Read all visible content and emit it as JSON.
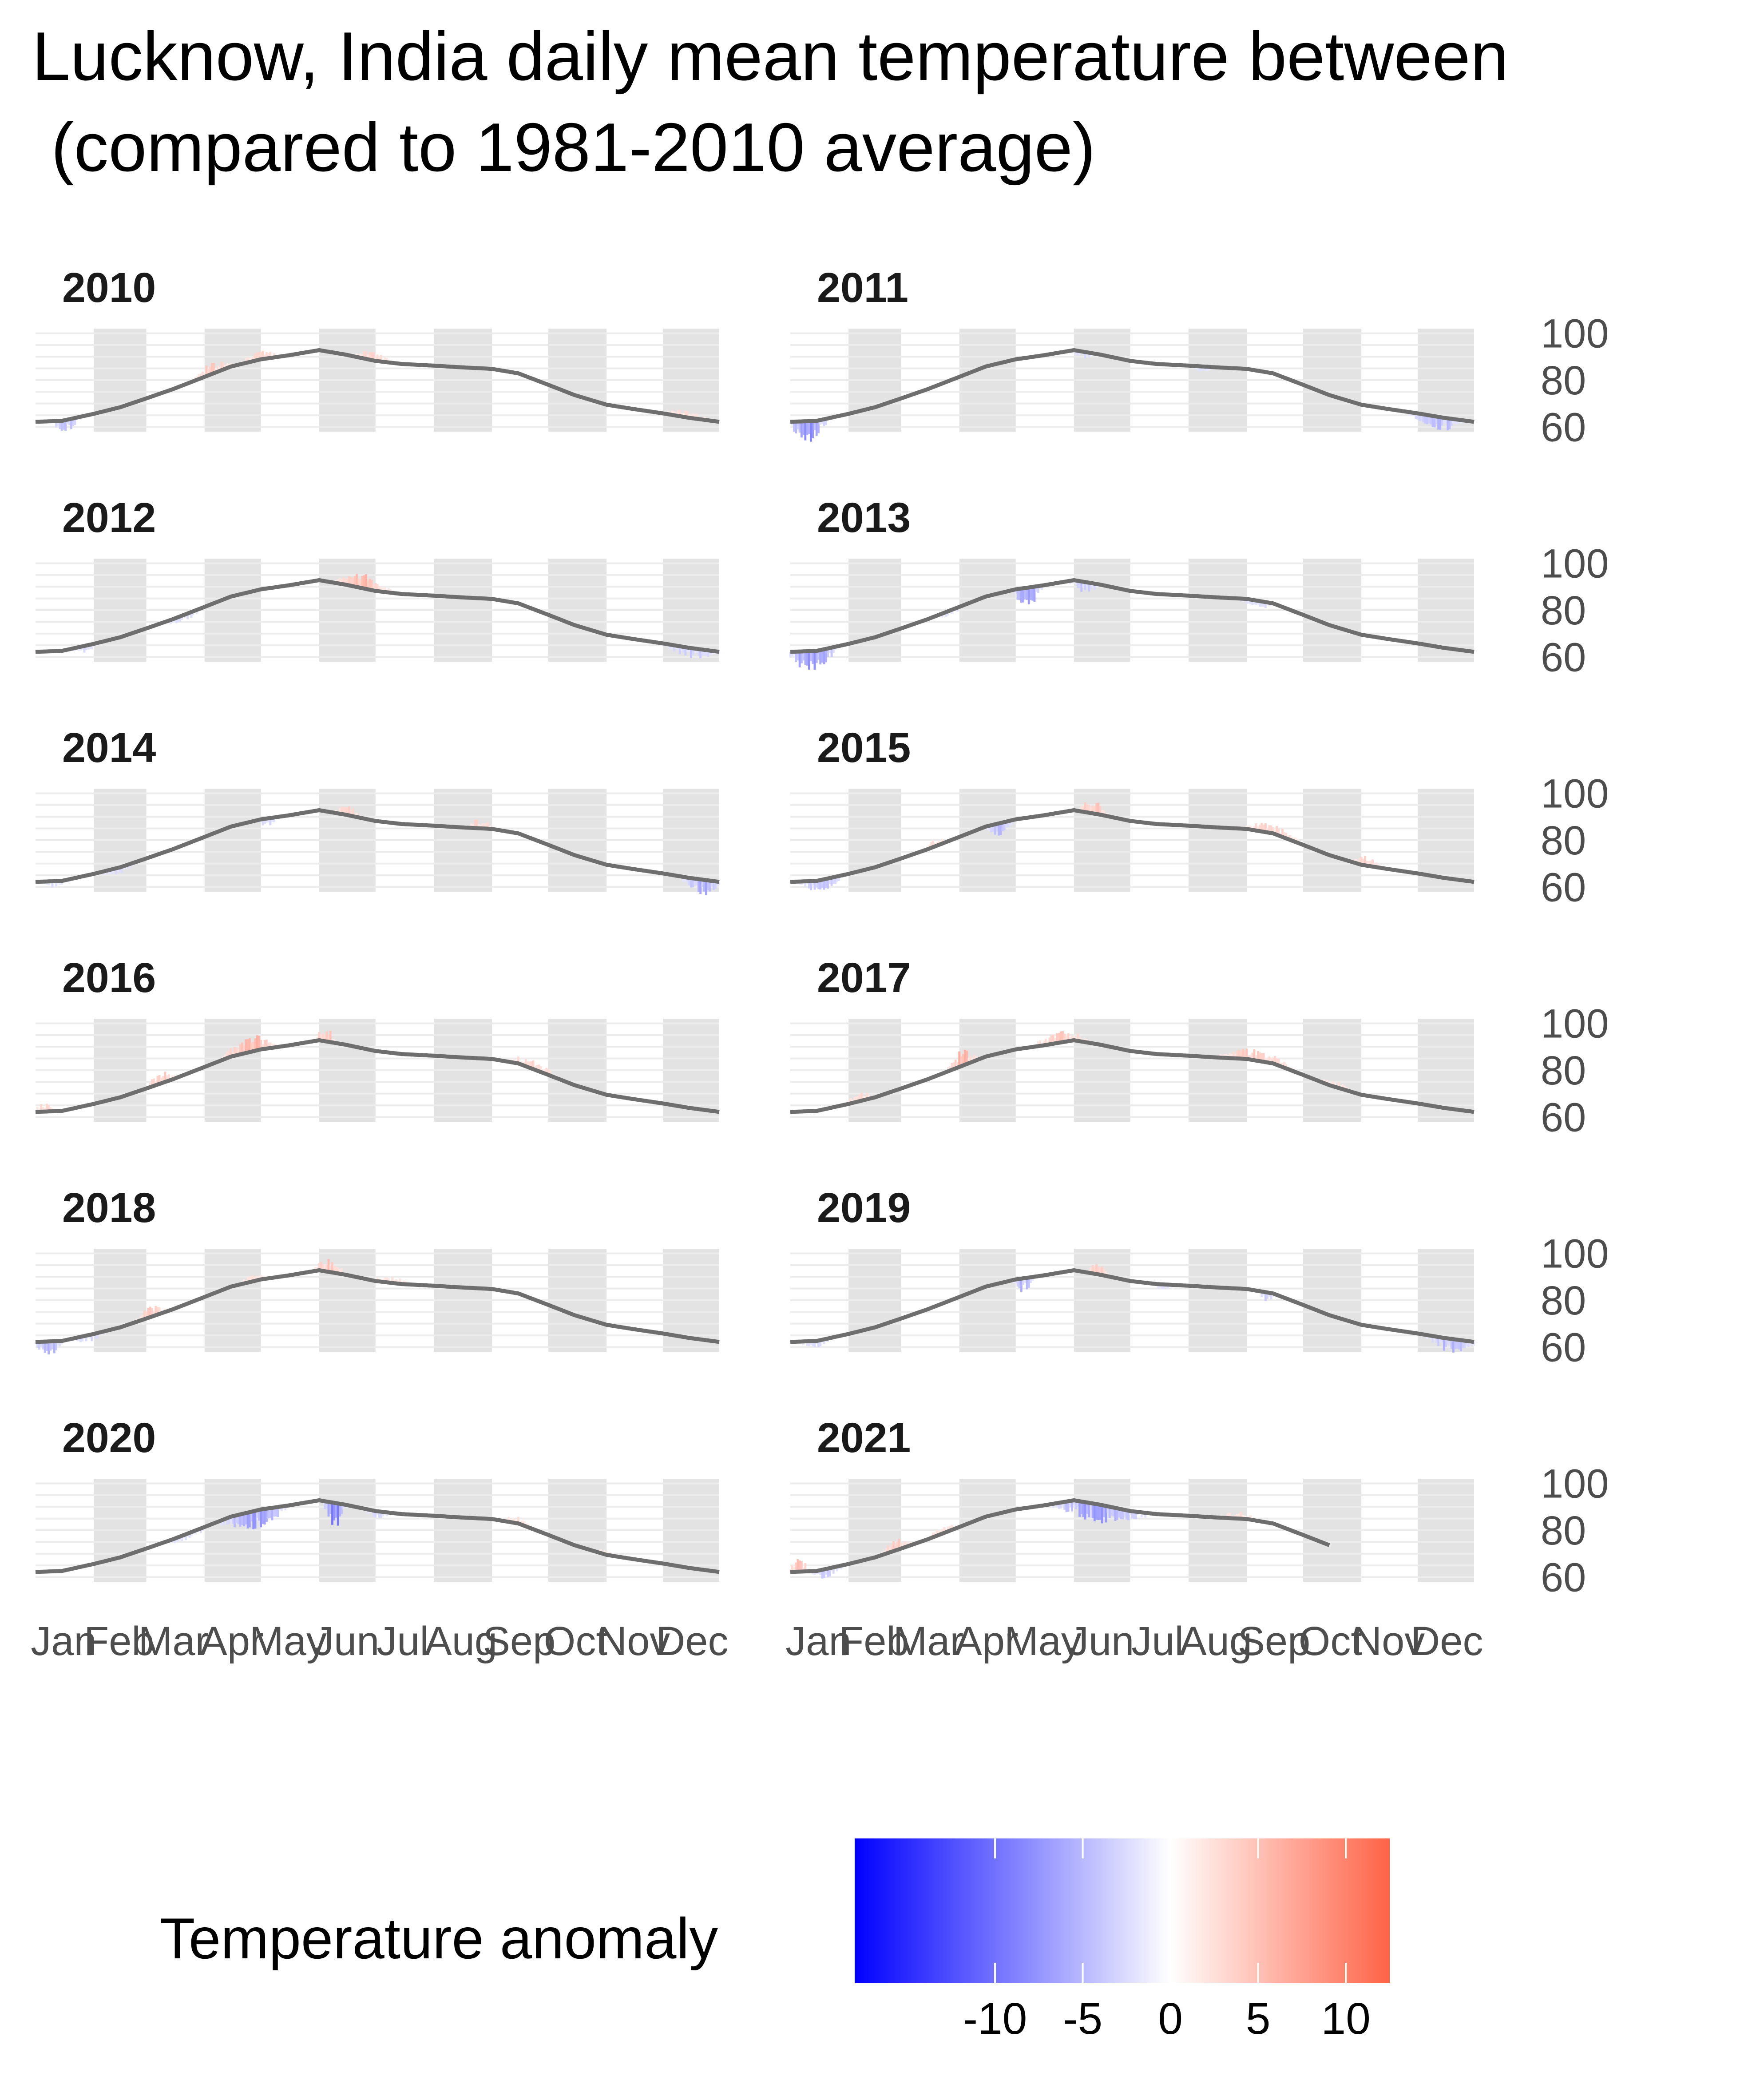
{
  "title_line1": "Lucknow, India daily mean temperature between",
  "title_line2": " (compared to 1981-2010 average)",
  "chart_data": {
    "type": "line",
    "facet_by": "year",
    "years": [
      "2010",
      "2011",
      "2012",
      "2013",
      "2014",
      "2015",
      "2016",
      "2017",
      "2018",
      "2019",
      "2020",
      "2021"
    ],
    "x_tick_labels": [
      "Jan",
      "Feb",
      "Mar",
      "Apr",
      "May",
      "Jun",
      "Jul",
      "Aug",
      "Sep",
      "Oct",
      "Nov",
      "Dec"
    ],
    "y_tick_labels": [
      "60",
      "80",
      "100"
    ],
    "ylim": [
      58,
      102
    ],
    "normal_series": {
      "days": [
        1,
        15,
        32,
        46,
        60,
        74,
        91,
        105,
        121,
        135,
        152,
        166,
        182,
        196,
        213,
        227,
        244,
        258,
        274,
        288,
        305,
        319,
        335,
        349,
        365
      ],
      "values": [
        62.2,
        62.6,
        65.6,
        68.4,
        72.2,
        76.1,
        81.4,
        85.8,
        88.9,
        90.5,
        92.8,
        90.9,
        88.2,
        86.9,
        86.2,
        85.5,
        84.8,
        82.9,
        78.0,
        73.6,
        69.5,
        67.7,
        65.8,
        63.9,
        62.2
      ]
    },
    "anomaly_episodes": {
      "2010": [
        [
          10,
          25,
          -5
        ],
        [
          85,
          105,
          5
        ],
        [
          110,
          130,
          4
        ],
        [
          170,
          190,
          4
        ],
        [
          335,
          360,
          3
        ]
      ],
      "2011": [
        [
          1,
          20,
          -9
        ],
        [
          150,
          165,
          -3
        ],
        [
          215,
          225,
          -3
        ],
        [
          330,
          360,
          -6
        ]
      ],
      "2012": [
        [
          20,
          35,
          -3
        ],
        [
          70,
          90,
          -3
        ],
        [
          160,
          190,
          7
        ],
        [
          335,
          365,
          -5
        ]
      ],
      "2013": [
        [
          1,
          25,
          -10
        ],
        [
          80,
          92,
          -3
        ],
        [
          120,
          135,
          -8
        ],
        [
          150,
          165,
          -5
        ],
        [
          240,
          260,
          -3
        ]
      ],
      "2014": [
        [
          5,
          20,
          -3
        ],
        [
          35,
          55,
          -3
        ],
        [
          120,
          130,
          -4
        ],
        [
          160,
          175,
          4
        ],
        [
          230,
          245,
          4
        ],
        [
          345,
          365,
          -7
        ]
      ],
      "2015": [
        [
          5,
          30,
          -5
        ],
        [
          70,
          85,
          3
        ],
        [
          105,
          120,
          -6
        ],
        [
          155,
          170,
          6
        ],
        [
          240,
          275,
          4
        ],
        [
          300,
          315,
          5
        ]
      ],
      "2016": [
        [
          1,
          10,
          4
        ],
        [
          60,
          75,
          5
        ],
        [
          100,
          130,
          7
        ],
        [
          150,
          160,
          7
        ],
        [
          250,
          280,
          4
        ]
      ],
      "2017": [
        [
          30,
          45,
          4
        ],
        [
          85,
          100,
          7
        ],
        [
          130,
          160,
          5
        ],
        [
          230,
          270,
          5
        ],
        [
          280,
          300,
          3
        ]
      ],
      "2018": [
        [
          1,
          15,
          -6
        ],
        [
          20,
          40,
          -3
        ],
        [
          55,
          70,
          5
        ],
        [
          110,
          125,
          3
        ],
        [
          150,
          165,
          6
        ],
        [
          180,
          200,
          3
        ]
      ],
      "2019": [
        [
          5,
          25,
          -3
        ],
        [
          120,
          130,
          -6
        ],
        [
          160,
          170,
          6
        ],
        [
          195,
          205,
          -3
        ],
        [
          250,
          260,
          -4
        ],
        [
          340,
          365,
          -7
        ]
      ],
      "2020": [
        [
          70,
          95,
          -3
        ],
        [
          100,
          135,
          -8
        ],
        [
          155,
          165,
          -12
        ],
        [
          175,
          190,
          -3
        ],
        [
          250,
          265,
          3
        ],
        [
          300,
          310,
          3
        ]
      ],
      "2021": [
        [
          1,
          10,
          6
        ],
        [
          10,
          30,
          -4
        ],
        [
          50,
          65,
          5
        ],
        [
          75,
          90,
          4
        ],
        [
          140,
          190,
          -8
        ],
        [
          230,
          250,
          3
        ]
      ]
    },
    "data_end_day": {
      "2021": 288
    },
    "legend": {
      "title": "Temperature anomaly",
      "tick_labels": [
        "-10",
        "-5",
        "0",
        "5",
        "10"
      ],
      "tick_values": [
        -10,
        -5,
        0,
        5,
        10
      ],
      "range": [
        -18,
        12.5
      ]
    },
    "colors": {
      "cold": "#0000ff",
      "zero": "#ffffff",
      "hot": "#ff6347",
      "normal_line": "#6e6e6e",
      "month_band": "#e3e3e3",
      "gridline": "#ececec",
      "tick_text": "#4d4d4d",
      "strip_text": "#1a1a1a"
    }
  }
}
